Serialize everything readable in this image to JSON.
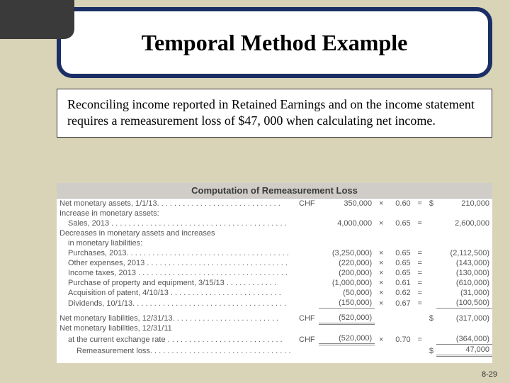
{
  "title": "Temporal Method Example",
  "description": "Reconciling income reported in Retained Earnings and on the income statement requires a remeasurement loss of $47, 000 when calculating net income.",
  "tableHeader": "Computation of Remeasurement Loss",
  "currency": {
    "fc": "CHF",
    "usd": "$"
  },
  "sym": {
    "times": "×",
    "eq": "="
  },
  "rows": {
    "r0": {
      "label": "Net monetary assets, 1/1/13. . . . . . . . . . . . . . . . . . . . . . . . . . . . .",
      "fc": "350,000",
      "rate": "0.60",
      "val": "210,000"
    },
    "r1": {
      "label": "Increase in monetary assets:"
    },
    "r2": {
      "label": "Sales, 2013 . . . . . . . . . . . . . . . . . . . . . . . . . . . . . . . . . . . . . . . . .",
      "fc": "4,000,000",
      "rate": "0.65",
      "val": "2,600,000"
    },
    "r3": {
      "label": "Decreases in monetary assets and increases"
    },
    "r3b": {
      "label": "in monetary liabilities:"
    },
    "r4": {
      "label": "Purchases, 2013. . . . . . . . . . . . . . . . . . . . . . . . . . . . . . . . . . . . . .",
      "fc": "(3,250,000)",
      "rate": "0.65",
      "val": "(2,112,500)"
    },
    "r5": {
      "label": "Other expenses, 2013 . . . . . . . . . . . . . . . . . . . . . . . . . . . . . . . . .",
      "fc": "(220,000)",
      "rate": "0.65",
      "val": "(143,000)"
    },
    "r6": {
      "label": "Income taxes, 2013 . . . . . . . . . . . . . . . . . . . . . . . . . . . . . . . . . . .",
      "fc": "(200,000)",
      "rate": "0.65",
      "val": "(130,000)"
    },
    "r7": {
      "label": "Purchase of property and equipment, 3/15/13 . . . . . . . . . . . .",
      "fc": "(1,000,000)",
      "rate": "0.61",
      "val": "(610,000)"
    },
    "r8": {
      "label": "Acquisition of patent, 4/10/13 . . . . . . . . . . . . . . . . . . . . . . . . . .",
      "fc": "(50,000)",
      "rate": "0.62",
      "val": "(31,000)"
    },
    "r9": {
      "label": "Dividends, 10/1/13. . . . . . . . . . . . . . . . . . . . . . . . . . . . . . . . . . . .",
      "fc": "(150,000)",
      "rate": "0.67",
      "val": "(100,500)"
    },
    "r10": {
      "label": "Net monetary liabilities, 12/31/13. . . . . . . . . . . . . . . . . . . . . . . . .",
      "fc": "(520,000)",
      "val": "(317,000)"
    },
    "r11": {
      "label": "Net monetary liabilities, 12/31/11"
    },
    "r12": {
      "label": "at the current exchange rate . . . . . . . . . . . . . . . . . . . . . . . . . . .",
      "fc": "(520,000)",
      "rate": "0.70",
      "val": "(364,000)"
    },
    "r13": {
      "label": "Remeasurement loss. . . . . . . . . . . . . . . . . . . . . . . . . . . . . . . . .",
      "val": "47,000"
    }
  },
  "pageNumber": "8-29"
}
